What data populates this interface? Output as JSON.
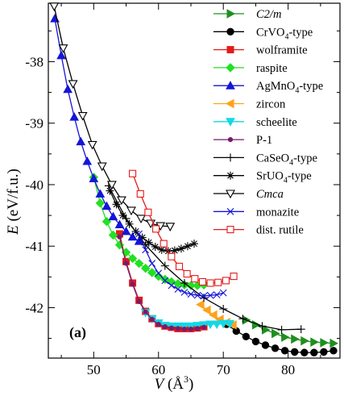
{
  "chart_data": {
    "type": "line",
    "panel_label": "(a)",
    "ylabel": "E (eV/f.u.)",
    "xlabel": "V (Å³)",
    "xlim": [
      43,
      88
    ],
    "ylim": [
      -42.82,
      -37.05
    ],
    "xticks": [
      50,
      60,
      70,
      80
    ],
    "yticks": [
      -38,
      -39,
      -40,
      -41,
      -42
    ],
    "grid": false,
    "legend_position": "top-right",
    "series": [
      {
        "name": "C2/m",
        "italic": true,
        "color": "#1f8f1f",
        "marker": "tri-right-filled",
        "x": [
          73.5,
          75.0,
          76.5,
          78.0,
          79.5,
          81.0,
          82.5,
          84.0,
          85.5,
          87.0
        ],
        "y": [
          -42.2,
          -42.28,
          -42.36,
          -42.42,
          -42.48,
          -42.51,
          -42.54,
          -42.56,
          -42.57,
          -42.58
        ]
      },
      {
        "name": "CrVO4-type",
        "color": "#000000",
        "marker": "circle-filled",
        "x": [
          70.5,
          72.0,
          73.5,
          75.0,
          76.5,
          78.0,
          79.5,
          81.0,
          82.5,
          84.0,
          85.5,
          87.0
        ],
        "y": [
          -42.27,
          -42.38,
          -42.47,
          -42.55,
          -42.61,
          -42.66,
          -42.7,
          -42.72,
          -42.73,
          -42.73,
          -42.72,
          -42.7
        ]
      },
      {
        "name": "wolframite",
        "color": "#e41a1a",
        "marker": "square-filled",
        "x": [
          54.0,
          55.0,
          56.0,
          57.0,
          58.0,
          59.0,
          60.0,
          61.0,
          62.0,
          63.0,
          64.0,
          65.0,
          66.0,
          67.0
        ],
        "y": [
          -40.8,
          -41.25,
          -41.6,
          -41.88,
          -42.06,
          -42.18,
          -42.26,
          -42.3,
          -42.32,
          -42.34,
          -42.34,
          -42.34,
          -42.33,
          -42.31
        ]
      },
      {
        "name": "raspite",
        "color": "#22e022",
        "marker": "diamond-filled",
        "x": [
          50.0,
          51.0,
          52.0,
          53.0,
          54.0,
          55.0,
          56.0,
          57.0,
          58.0,
          59.0,
          60.0,
          61.0,
          62.0,
          63.0,
          64.0,
          65.0,
          66.0,
          67.0
        ],
        "y": [
          -39.88,
          -40.3,
          -40.6,
          -40.82,
          -40.98,
          -41.1,
          -41.2,
          -41.28,
          -41.36,
          -41.43,
          -41.49,
          -41.54,
          -41.58,
          -41.61,
          -41.63,
          -41.64,
          -41.64,
          -41.63
        ]
      },
      {
        "name": "AgMnO4-type",
        "color": "#1515d8",
        "marker": "tri-up-filled",
        "x": [
          44.0,
          45.0,
          46.0,
          47.0,
          48.0,
          49.0,
          50.0,
          51.0,
          52.0,
          53.0,
          54.0,
          55.0,
          56.0,
          57.0
        ],
        "y": [
          -37.3,
          -37.9,
          -38.45,
          -38.9,
          -39.3,
          -39.62,
          -39.9,
          -40.15,
          -40.35,
          -40.52,
          -40.65,
          -40.76,
          -40.85,
          -40.92
        ]
      },
      {
        "name": "zircon",
        "color": "#ffa21a",
        "marker": "tri-left-filled",
        "x": [
          66.5,
          67.5,
          68.5,
          69.5,
          70.5,
          71.5
        ],
        "y": [
          -41.95,
          -42.04,
          -42.12,
          -42.19,
          -42.24,
          -42.28
        ]
      },
      {
        "name": "scheelite",
        "color": "#12d8e6",
        "marker": "tri-down-filled",
        "x": [
          58.0,
          59.0,
          60.0,
          61.0,
          62.0,
          63.0,
          64.0,
          65.0,
          66.0,
          67.0,
          68.0,
          69.0,
          70.0,
          71.0
        ],
        "y": [
          -42.08,
          -42.18,
          -42.25,
          -42.29,
          -42.3,
          -42.3,
          -42.3,
          -42.3,
          -42.29,
          -42.28,
          -42.27,
          -42.27,
          -42.26,
          -42.26
        ]
      },
      {
        "name": "P-1",
        "color": "#7a1a6a",
        "marker": "circle-small",
        "x": [
          54.0,
          55.0,
          56.0,
          57.0,
          58.0,
          59.0,
          60.0,
          61.0,
          62.0,
          63.0,
          64.0,
          65.0,
          66.0,
          67.0
        ],
        "y": [
          -40.85,
          -41.28,
          -41.62,
          -41.9,
          -42.07,
          -42.19,
          -42.27,
          -42.31,
          -42.33,
          -42.34,
          -42.35,
          -42.35,
          -42.34,
          -42.32
        ]
      },
      {
        "name": "CaSeO4-type",
        "color": "#000000",
        "marker": "plus",
        "x": [
          52.3,
          55.0,
          58.0,
          61.0,
          64.0,
          67.0,
          70.0,
          73.0,
          76.0,
          79.0,
          82.0
        ],
        "y": [
          -40.02,
          -40.55,
          -40.98,
          -41.32,
          -41.6,
          -41.84,
          -42.02,
          -42.18,
          -42.3,
          -42.36,
          -42.35
        ]
      },
      {
        "name": "SrUO4-type",
        "color": "#000000",
        "marker": "asterisk",
        "x": [
          52.5,
          53.5,
          54.5,
          55.5,
          56.5,
          57.5,
          58.5,
          59.5,
          60.5,
          61.5,
          62.5,
          63.5,
          64.5,
          65.5
        ],
        "y": [
          -40.1,
          -40.32,
          -40.5,
          -40.64,
          -40.76,
          -40.86,
          -40.94,
          -41.01,
          -41.06,
          -41.08,
          -41.07,
          -41.04,
          -41.0,
          -40.96
        ]
      },
      {
        "name": "Cmca",
        "italic": true,
        "color": "#000000",
        "marker": "tri-down-open",
        "x": [
          43.9,
          45.3,
          46.8,
          48.3,
          49.8,
          51.3,
          52.8,
          54.3,
          55.8,
          57.3,
          58.8,
          60.3,
          61.8
        ],
        "y": [
          -37.1,
          -37.78,
          -38.36,
          -38.88,
          -39.35,
          -39.7,
          -40.0,
          -40.25,
          -40.42,
          -40.55,
          -40.63,
          -40.67,
          -40.68
        ]
      },
      {
        "name": "monazite",
        "color": "#1515d8",
        "marker": "cross",
        "x": [
          57.0,
          58.0,
          59.0,
          60.0,
          61.0,
          62.0,
          63.0,
          64.0,
          65.0,
          66.0,
          67.0,
          68.0,
          69.0,
          70.0
        ],
        "y": [
          -40.8,
          -41.06,
          -41.28,
          -41.44,
          -41.56,
          -41.64,
          -41.7,
          -41.75,
          -41.78,
          -41.8,
          -41.81,
          -41.8,
          -41.79,
          -41.76
        ]
      },
      {
        "name": "dist. rutile",
        "color": "#e41a1a",
        "marker": "square-open",
        "x": [
          56.0,
          57.2,
          58.4,
          59.6,
          60.8,
          62.0,
          63.2,
          64.4,
          65.6,
          66.8,
          68.0,
          69.2,
          70.4,
          71.6
        ],
        "y": [
          -39.82,
          -40.15,
          -40.45,
          -40.72,
          -40.96,
          -41.17,
          -41.33,
          -41.45,
          -41.53,
          -41.58,
          -41.6,
          -41.59,
          -41.56,
          -41.49
        ]
      }
    ],
    "legend_labels": [
      {
        "main": "C2/m",
        "sub": "",
        "tail": ""
      },
      {
        "main": "CrVO",
        "sub": "4",
        "tail": "-type"
      },
      {
        "main": "wolframite",
        "sub": "",
        "tail": ""
      },
      {
        "main": "raspite",
        "sub": "",
        "tail": ""
      },
      {
        "main": "AgMnO",
        "sub": "4",
        "tail": "-type"
      },
      {
        "main": "zircon",
        "sub": "",
        "tail": ""
      },
      {
        "main": "scheelite",
        "sub": "",
        "tail": ""
      },
      {
        "main": "P-1",
        "sub": "",
        "tail": ""
      },
      {
        "main": "CaSeO",
        "sub": "4",
        "tail": "-type"
      },
      {
        "main": "SrUO",
        "sub": "4",
        "tail": "-type"
      },
      {
        "main": "Cmca",
        "sub": "",
        "tail": ""
      },
      {
        "main": "monazite",
        "sub": "",
        "tail": ""
      },
      {
        "main": "dist. rutile",
        "sub": "",
        "tail": ""
      }
    ]
  }
}
